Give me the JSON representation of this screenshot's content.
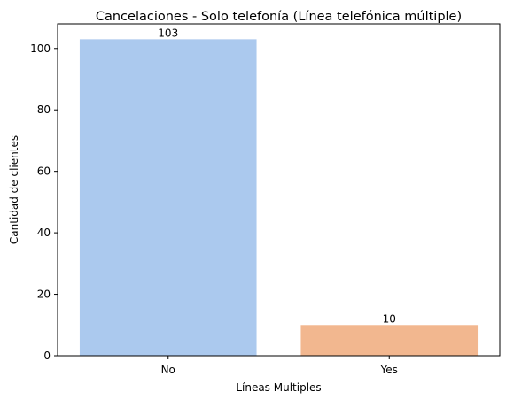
{
  "chart_data": {
    "type": "bar",
    "title": "Cancelaciones - Solo telefonía (Línea telefónica múltiple)",
    "xlabel": "Líneas Multiples",
    "ylabel": "Cantidad de clientes",
    "categories": [
      "No",
      "Yes"
    ],
    "values": [
      103,
      10
    ],
    "data_labels": [
      "103",
      "10"
    ],
    "colors": [
      "#abc9ee",
      "#f2b78f"
    ],
    "ylim": [
      0,
      108
    ],
    "yticks": [
      0,
      20,
      40,
      60,
      80,
      100
    ],
    "grid": false,
    "legend": "none"
  }
}
